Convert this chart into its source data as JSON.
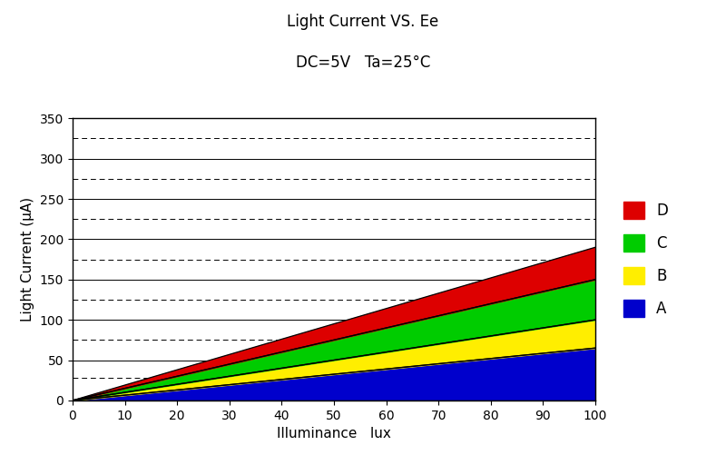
{
  "title1": "Light Current VS. Ee",
  "title2": "DC=5V   Ta=25°C",
  "xlabel": "Illuminance   lux",
  "ylabel": "Light Current (μA)",
  "xlim": [
    0,
    100
  ],
  "ylim": [
    0,
    350
  ],
  "xticks": [
    0,
    10,
    20,
    30,
    40,
    50,
    60,
    70,
    80,
    90,
    100
  ],
  "yticks": [
    0,
    50,
    100,
    150,
    200,
    250,
    300,
    350
  ],
  "solid_hlines": [
    50,
    100,
    150,
    200,
    250,
    300
  ],
  "dashed_hlines": [
    27.5,
    75,
    125,
    175,
    225,
    275,
    325
  ],
  "bands": [
    {
      "label": "A",
      "color": "#0000cc",
      "lower_at100": 0,
      "upper_at100": 65
    },
    {
      "label": "B",
      "color": "#ffee00",
      "lower_at100": 65,
      "upper_at100": 100
    },
    {
      "label": "C",
      "color": "#00cc00",
      "lower_at100": 100,
      "upper_at100": 150
    },
    {
      "label": "D",
      "color": "#dd0000",
      "lower_at100": 150,
      "upper_at100": 190
    }
  ],
  "x_values": [
    0,
    100
  ],
  "background_color": "#ffffff",
  "figsize": [
    8.0,
    5.01
  ],
  "dpi": 100,
  "title1_fontsize": 12,
  "title2_fontsize": 12,
  "axis_fontsize": 11,
  "tick_fontsize": 10,
  "legend_fontsize": 12
}
